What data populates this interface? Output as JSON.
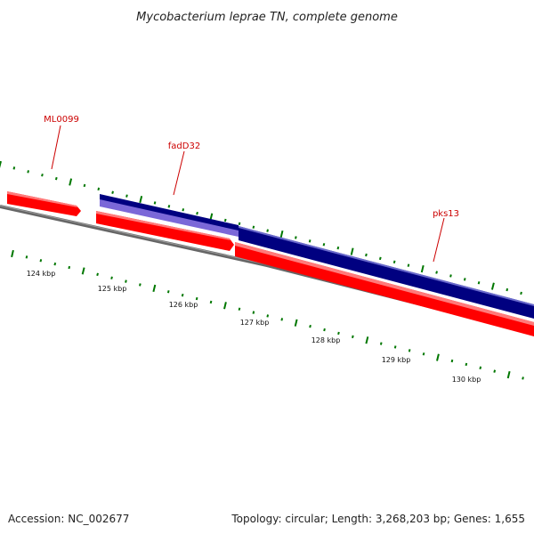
{
  "title": "Mycobacterium leprae TN, complete genome",
  "accession": "Accession: NC_002677",
  "summary": "Topology: circular; Length: 3,268,203 bp; Genes: 1,655",
  "colors": {
    "forward_cds": "#ff0000",
    "forward_cds_highlight": "#ff6a6a",
    "reverse_cds": "#000080",
    "reverse_cds_light": "#7b68d8",
    "backbone": "#666666",
    "ticks": "#007700",
    "gene_label": "#cc0000"
  },
  "gene_labels": [
    {
      "name": "ML0099"
    },
    {
      "name": "fadD32"
    },
    {
      "name": "pks13"
    }
  ],
  "tick_labels": [
    "124 kbp",
    "125 kbp",
    "126 kbp",
    "127 kbp",
    "128 kbp",
    "129 kbp",
    "130 kbp"
  ]
}
